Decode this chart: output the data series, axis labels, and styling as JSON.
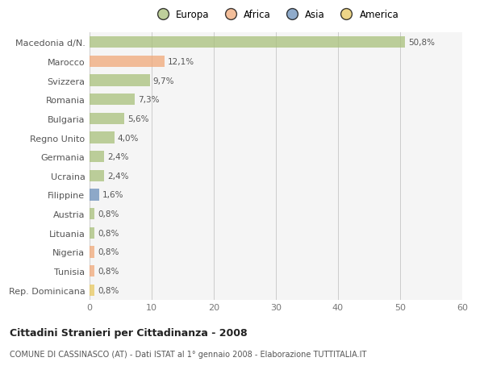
{
  "categories": [
    "Macedonia d/N.",
    "Marocco",
    "Svizzera",
    "Romania",
    "Bulgaria",
    "Regno Unito",
    "Germania",
    "Ucraina",
    "Filippine",
    "Austria",
    "Lituania",
    "Nigeria",
    "Tunisia",
    "Rep. Dominicana"
  ],
  "values": [
    50.8,
    12.1,
    9.7,
    7.3,
    5.6,
    4.0,
    2.4,
    2.4,
    1.6,
    0.8,
    0.8,
    0.8,
    0.8,
    0.8
  ],
  "labels": [
    "50,8%",
    "12,1%",
    "9,7%",
    "7,3%",
    "5,6%",
    "4,0%",
    "2,4%",
    "2,4%",
    "1,6%",
    "0,8%",
    "0,8%",
    "0,8%",
    "0,8%",
    "0,8%"
  ],
  "colors": [
    "#a8c07a",
    "#f0a878",
    "#a8c07a",
    "#a8c07a",
    "#a8c07a",
    "#a8c07a",
    "#a8c07a",
    "#a8c07a",
    "#6a8fba",
    "#a8c07a",
    "#a8c07a",
    "#f0a878",
    "#f0a878",
    "#e8c860"
  ],
  "legend_labels": [
    "Europa",
    "Africa",
    "Asia",
    "America"
  ],
  "legend_colors": [
    "#a8c07a",
    "#f0a878",
    "#6a8fba",
    "#e8c860"
  ],
  "title": "Cittadini Stranieri per Cittadinanza - 2008",
  "subtitle": "COMUNE DI CASSINASCO (AT) - Dati ISTAT al 1° gennaio 2008 - Elaborazione TUTTITALIA.IT",
  "xlim": [
    0,
    60
  ],
  "xticks": [
    0,
    10,
    20,
    30,
    40,
    50,
    60
  ],
  "background_color": "#ffffff",
  "plot_bg_color": "#f5f5f5",
  "bar_height": 0.6,
  "bar_alpha": 0.75
}
